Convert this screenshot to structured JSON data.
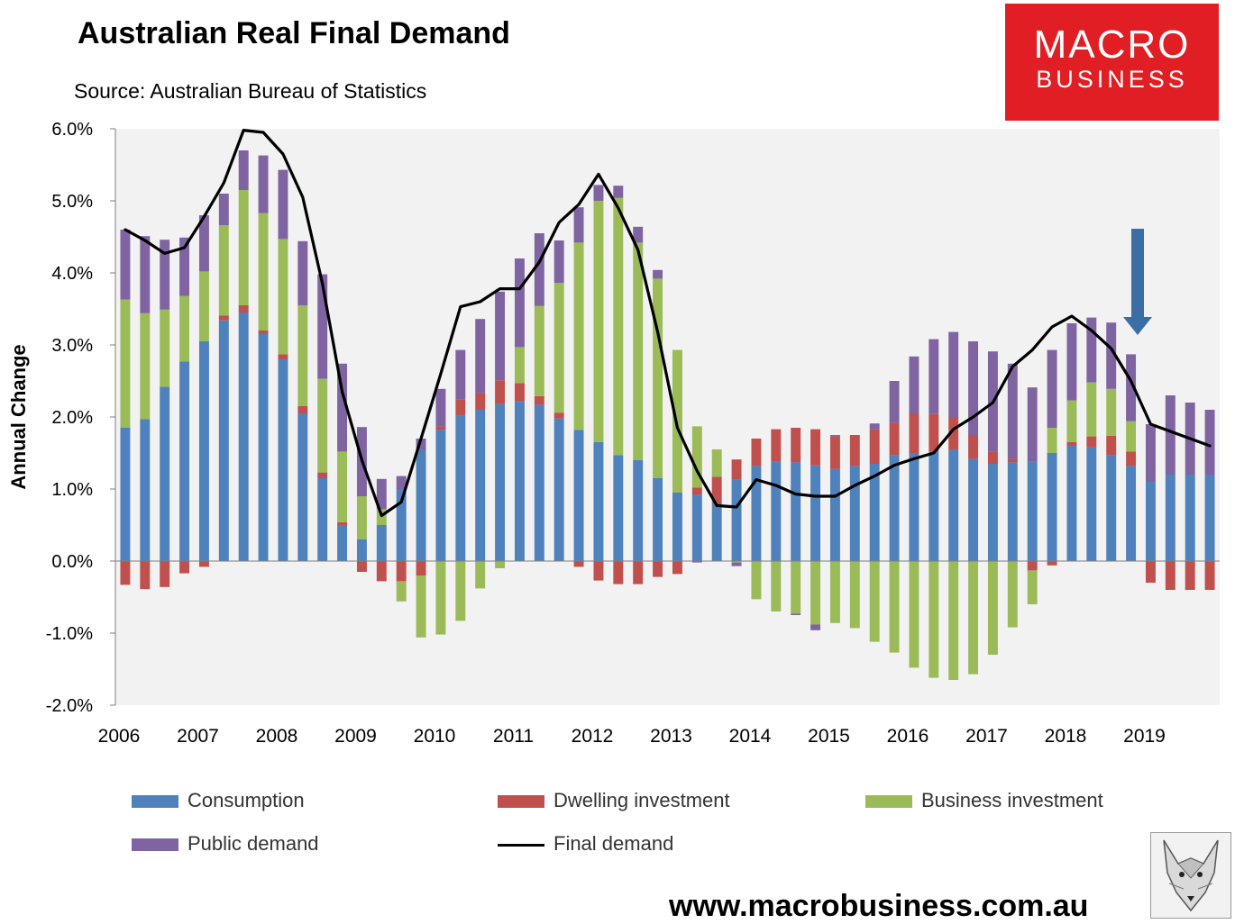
{
  "title": "Australian Real Final Demand",
  "source": "Source: Australian Bureau of Statistics",
  "logo": {
    "line1": "MACRO",
    "line2": "BUSINESS"
  },
  "website": "www.macrobusiness.com.au",
  "fox_icon": "fox-mascot-icon",
  "colors": {
    "consumption": "#4f81bd",
    "dwelling": "#c0504d",
    "business": "#9bbb59",
    "public": "#8064a2",
    "final": "#000000",
    "arrow": "#3a6ea5",
    "background": "#f2f2f2",
    "logo": "#e01e24"
  },
  "chart_data": {
    "type": "bar",
    "stacked": true,
    "title": "Australian Real Final Demand",
    "ylabel": "Annual Change",
    "xlabel": "",
    "ylim": [
      -2.0,
      6.0
    ],
    "yticks": [
      -2.0,
      -1.0,
      0.0,
      1.0,
      2.0,
      3.0,
      4.0,
      5.0,
      6.0
    ],
    "ytick_labels": [
      "-2.0%",
      "-1.0%",
      "0.0%",
      "1.0%",
      "2.0%",
      "3.0%",
      "4.0%",
      "5.0%",
      "6.0%"
    ],
    "xtick_labels": [
      "2006",
      "2007",
      "2008",
      "2009",
      "2010",
      "2011",
      "2012",
      "2013",
      "2014",
      "2015",
      "2016",
      "2017",
      "2018",
      "2019"
    ],
    "quarters_per_year": 4,
    "start_year": 2006,
    "grid": false,
    "legend": [
      "Consumption",
      "Dwelling investment",
      "Business investment",
      "Public demand",
      "Final demand"
    ],
    "annotation": "arrow-down-icon at 2018 Q4",
    "series": [
      {
        "name": "Consumption",
        "values": [
          1.85,
          1.97,
          2.42,
          2.77,
          3.05,
          3.34,
          3.45,
          3.15,
          2.8,
          2.05,
          1.15,
          0.5,
          0.3,
          0.5,
          1.0,
          1.55,
          1.82,
          2.02,
          2.1,
          2.18,
          2.22,
          2.17,
          1.98,
          1.82,
          1.65,
          1.47,
          1.4,
          1.15,
          0.95,
          0.92,
          0.8,
          1.13,
          1.32,
          1.38,
          1.37,
          1.33,
          1.28,
          1.32,
          1.35,
          1.47,
          1.5,
          1.52,
          1.55,
          1.42,
          1.35,
          1.37,
          1.38,
          1.5,
          1.6,
          1.58,
          1.47,
          1.32,
          1.1,
          1.2,
          1.2,
          1.2
        ]
      },
      {
        "name": "Dwelling investment",
        "values": [
          -0.33,
          -0.39,
          -0.36,
          -0.17,
          -0.08,
          0.07,
          0.1,
          0.05,
          0.07,
          0.1,
          0.08,
          0.04,
          -0.15,
          -0.28,
          -0.28,
          -0.2,
          0.05,
          0.22,
          0.23,
          0.33,
          0.25,
          0.12,
          0.08,
          -0.08,
          -0.27,
          -0.32,
          -0.32,
          -0.22,
          -0.18,
          0.1,
          0.37,
          0.28,
          0.38,
          0.45,
          0.48,
          0.5,
          0.45,
          0.43,
          0.48,
          0.45,
          0.55,
          0.52,
          0.45,
          0.33,
          0.17,
          0.05,
          -0.13,
          -0.06,
          0.05,
          0.15,
          0.27,
          0.2,
          -0.3,
          -0.4,
          -0.4,
          -0.4
        ]
      },
      {
        "name": "Business investment",
        "values": [
          1.78,
          1.47,
          1.07,
          0.91,
          0.97,
          1.25,
          1.6,
          1.63,
          1.6,
          1.4,
          1.3,
          0.98,
          0.6,
          0.22,
          -0.28,
          -0.86,
          -1.02,
          -0.83,
          -0.38,
          -0.1,
          0.5,
          1.25,
          1.8,
          2.6,
          3.35,
          3.57,
          3.02,
          2.77,
          1.98,
          0.85,
          0.38,
          -0.02,
          -0.53,
          -0.7,
          -0.73,
          -0.88,
          -0.86,
          -0.93,
          -1.12,
          -1.27,
          -1.48,
          -1.62,
          -1.65,
          -1.57,
          -1.3,
          -0.92,
          -0.47,
          0.35,
          0.58,
          0.75,
          0.65,
          0.42,
          0.0,
          0.0,
          0.0,
          0.0
        ]
      },
      {
        "name": "Public demand",
        "values": [
          0.97,
          1.07,
          0.97,
          0.81,
          0.78,
          0.44,
          0.55,
          0.8,
          0.96,
          0.89,
          1.45,
          1.22,
          0.96,
          0.42,
          0.18,
          0.15,
          0.52,
          0.69,
          1.03,
          1.23,
          1.23,
          1.01,
          0.59,
          0.49,
          0.22,
          0.17,
          0.22,
          0.12,
          0.0,
          -0.02,
          0.0,
          -0.05,
          0.0,
          0.0,
          -0.02,
          -0.08,
          0.02,
          0.0,
          0.08,
          0.58,
          0.79,
          1.04,
          1.18,
          1.3,
          1.39,
          1.32,
          1.03,
          1.08,
          1.07,
          0.9,
          0.92,
          0.93,
          0.8,
          1.1,
          1.0,
          0.9
        ]
      },
      {
        "name": "Final demand",
        "type": "line",
        "values": [
          4.6,
          4.45,
          4.27,
          4.35,
          4.78,
          5.25,
          5.98,
          5.95,
          5.65,
          5.05,
          3.85,
          2.35,
          1.4,
          0.63,
          0.82,
          1.7,
          2.6,
          3.53,
          3.6,
          3.78,
          3.78,
          4.15,
          4.7,
          4.95,
          5.37,
          4.9,
          4.32,
          3.18,
          1.85,
          1.25,
          0.77,
          0.75,
          1.13,
          1.05,
          0.93,
          0.9,
          0.9,
          1.05,
          1.18,
          1.33,
          1.42,
          1.5,
          1.83,
          2.0,
          2.2,
          2.7,
          2.93,
          3.25,
          3.4,
          3.2,
          2.95,
          2.5,
          1.9,
          1.8,
          1.7,
          1.6
        ]
      }
    ]
  }
}
